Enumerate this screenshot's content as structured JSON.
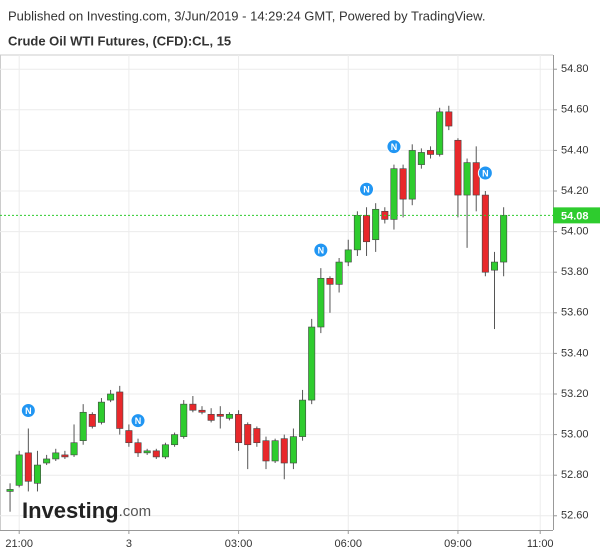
{
  "header": {
    "published": "Published on Investing.com, 3/Jun/2019 - 14:29:24 GMT, Powered by TradingView."
  },
  "logo": {
    "main": "Investing",
    "suffix": ".com"
  },
  "chart_data": {
    "type": "candlestick",
    "title": "Crude Oil WTI Futures, (CFD):CL, 15",
    "categories": [
      null,
      null,
      null,
      null,
      null,
      null,
      null,
      null,
      null,
      null,
      null,
      null,
      null,
      null,
      null,
      null,
      null,
      null,
      null,
      null,
      null,
      null,
      null,
      null,
      null,
      null,
      null,
      null,
      null,
      null,
      null,
      null,
      null,
      null,
      null,
      null,
      null,
      null,
      null,
      null,
      null,
      null,
      null,
      null,
      null,
      null,
      null,
      null,
      null,
      null,
      null,
      null,
      null,
      null,
      null
    ],
    "open": [
      52.72,
      52.75,
      52.91,
      52.76,
      52.86,
      52.88,
      52.9,
      52.9,
      52.97,
      53.1,
      53.06,
      53.17,
      53.21,
      53.02,
      52.96,
      52.91,
      52.92,
      52.89,
      52.95,
      52.99,
      53.15,
      53.12,
      53.1,
      53.1,
      53.08,
      53.1,
      53.05,
      53.03,
      52.97,
      52.87,
      52.98,
      52.86,
      52.99,
      53.17,
      53.53,
      53.77,
      53.74,
      53.85,
      53.91,
      54.08,
      53.96,
      54.1,
      54.06,
      54.31,
      54.16,
      54.33,
      54.4,
      54.38,
      54.59,
      54.45,
      54.18,
      54.34,
      54.18,
      53.81,
      53.85
    ],
    "high": [
      52.76,
      52.92,
      53.03,
      52.92,
      52.9,
      52.93,
      52.92,
      53.05,
      53.15,
      53.11,
      53.18,
      53.22,
      53.24,
      53.05,
      52.98,
      52.93,
      52.93,
      52.96,
      53.01,
      53.17,
      53.19,
      53.14,
      53.13,
      53.14,
      53.11,
      53.12,
      53.06,
      53.04,
      52.99,
      52.98,
      53.0,
      53.03,
      53.22,
      53.57,
      53.82,
      53.78,
      53.87,
      53.96,
      54.1,
      54.12,
      54.14,
      54.12,
      54.33,
      54.33,
      54.43,
      54.41,
      54.42,
      54.61,
      54.62,
      54.46,
      54.36,
      54.42,
      54.2,
      53.9,
      54.12
    ],
    "low": [
      52.62,
      52.74,
      52.72,
      52.72,
      52.85,
      52.87,
      52.88,
      52.89,
      52.95,
      53.03,
      53.05,
      53.16,
      53.0,
      52.94,
      52.89,
      52.9,
      52.88,
      52.88,
      52.94,
      52.98,
      53.11,
      53.1,
      53.06,
      53.03,
      53.07,
      52.92,
      52.83,
      52.94,
      52.83,
      52.86,
      52.78,
      52.83,
      52.97,
      53.15,
      53.5,
      53.6,
      53.7,
      53.83,
      53.88,
      53.88,
      53.9,
      54.04,
      54.01,
      54.07,
      54.13,
      54.31,
      54.36,
      54.37,
      54.5,
      54.07,
      53.92,
      54.1,
      53.78,
      53.52,
      53.78
    ],
    "close": [
      52.73,
      52.9,
      52.77,
      52.85,
      52.88,
      52.91,
      52.89,
      52.96,
      53.11,
      53.04,
      53.16,
      53.2,
      53.03,
      52.96,
      52.91,
      52.92,
      52.89,
      52.95,
      53.0,
      53.15,
      53.12,
      53.11,
      53.07,
      53.09,
      53.1,
      52.96,
      52.95,
      52.96,
      52.87,
      52.97,
      52.86,
      52.99,
      53.17,
      53.53,
      53.77,
      53.74,
      53.85,
      53.91,
      54.08,
      53.95,
      54.11,
      54.06,
      54.31,
      54.16,
      54.4,
      54.39,
      54.38,
      54.59,
      54.52,
      54.18,
      54.34,
      54.18,
      53.8,
      53.85,
      54.08
    ],
    "up_color": "#2ecc2e",
    "down_color": "#e8282b",
    "events": [
      {
        "index": 2,
        "label": "N"
      },
      {
        "index": 14,
        "label": "N"
      },
      {
        "index": 34,
        "label": "N"
      },
      {
        "index": 39,
        "label": "N"
      },
      {
        "index": 42,
        "label": "N"
      },
      {
        "index": 52,
        "label": "N"
      }
    ],
    "event_color": "#2196f3",
    "last_price": 54.08,
    "ylim": [
      52.53,
      54.87
    ],
    "yticks": [
      {
        "value": 52.6,
        "label": "52.60"
      },
      {
        "value": 52.8,
        "label": "52.80"
      },
      {
        "value": 53,
        "label": "53.00"
      },
      {
        "value": 53.2,
        "label": "53.20"
      },
      {
        "value": 53.4,
        "label": "53.40"
      },
      {
        "value": 53.6,
        "label": "53.60"
      },
      {
        "value": 53.8,
        "label": "53.80"
      },
      {
        "value": 54,
        "label": "54.00"
      },
      {
        "value": 54.2,
        "label": "54.20"
      },
      {
        "value": 54.4,
        "label": "54.40"
      },
      {
        "value": 54.6,
        "label": "54.60"
      },
      {
        "value": 54.8,
        "label": "54.80"
      }
    ],
    "xlim": [
      -1.1,
      59.4
    ],
    "xticks": [
      {
        "value": 1,
        "label": "21:00"
      },
      {
        "value": 13,
        "label": "3"
      },
      {
        "value": 25,
        "label": "03:00"
      },
      {
        "value": 37,
        "label": "06:00"
      },
      {
        "value": 49,
        "label": "09:00"
      },
      {
        "value": 58,
        "label": "11:00"
      }
    ],
    "grid": true
  }
}
